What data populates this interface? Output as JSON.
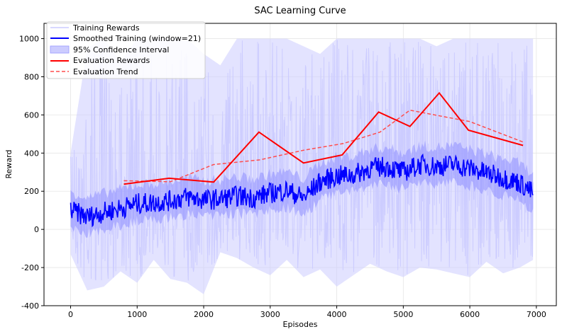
{
  "chart_data": {
    "type": "line",
    "title": "SAC Learning Curve",
    "xlabel": "Episodes",
    "ylabel": "Reward",
    "xlim": [
      -400,
      7300
    ],
    "ylim": [
      -400,
      1080
    ],
    "xticks": [
      0,
      1000,
      2000,
      3000,
      4000,
      5000,
      6000,
      7000
    ],
    "yticks": [
      -400,
      -200,
      0,
      200,
      400,
      600,
      800,
      1000
    ],
    "grid": true,
    "legend_position": "top-left",
    "colors": {
      "training_raw": "#ccccff",
      "ci_band": "#ccccff",
      "smoothed": "#0000ff",
      "mid_band": "#8080ff",
      "evaluation": "#ff0000",
      "trend": "#ff4d4d"
    },
    "series": [
      {
        "name": "Training Rewards",
        "style": "thin-line",
        "x": [
          0,
          250,
          500,
          750,
          1000,
          1250,
          1500,
          1750,
          2000,
          2250,
          2500,
          2750,
          3000,
          3250,
          3500,
          3750,
          4000,
          4250,
          4500,
          4750,
          5000,
          5250,
          5500,
          5750,
          6000,
          6250,
          6500,
          6750,
          6950
        ],
        "upper": [
          400,
          950,
          1000,
          880,
          1000,
          1000,
          1000,
          1000,
          920,
          860,
          1000,
          1000,
          1000,
          1000,
          960,
          920,
          1000,
          1000,
          1000,
          1000,
          1000,
          1000,
          960,
          1000,
          1000,
          1000,
          1000,
          1000,
          1000
        ],
        "lower": [
          -130,
          -320,
          -300,
          -220,
          -280,
          -160,
          -260,
          -280,
          -340,
          -120,
          -150,
          -200,
          -240,
          -160,
          -250,
          -210,
          -300,
          -240,
          -180,
          -220,
          -250,
          -200,
          -210,
          -230,
          -250,
          -170,
          -230,
          -200,
          -160
        ]
      },
      {
        "name": "Smoothed Training (window=21)",
        "style": "line",
        "x": [
          0,
          250,
          500,
          750,
          1000,
          1250,
          1500,
          1750,
          2000,
          2250,
          2500,
          2750,
          3000,
          3250,
          3500,
          3750,
          4000,
          4250,
          4500,
          4750,
          5000,
          5250,
          5500,
          5750,
          6000,
          6250,
          6500,
          6750,
          6950
        ],
        "values": [
          100,
          65,
          90,
          110,
          135,
          140,
          150,
          170,
          155,
          160,
          175,
          165,
          190,
          205,
          165,
          250,
          280,
          285,
          320,
          330,
          300,
          340,
          330,
          340,
          320,
          295,
          270,
          245,
          190
        ]
      },
      {
        "name": "95% Confidence Interval",
        "style": "band",
        "x": [
          0,
          250,
          500,
          750,
          1000,
          1250,
          1500,
          1750,
          2000,
          2250,
          2500,
          2750,
          3000,
          3250,
          3500,
          3750,
          4000,
          4250,
          4500,
          4750,
          5000,
          5250,
          5500,
          5750,
          6000,
          6250,
          6500,
          6750,
          6950
        ],
        "upper": [
          400,
          950,
          1000,
          880,
          1000,
          1000,
          1000,
          1000,
          920,
          860,
          1000,
          1000,
          1000,
          1000,
          960,
          920,
          1000,
          1000,
          1000,
          1000,
          1000,
          1000,
          960,
          1000,
          1000,
          1000,
          1000,
          1000,
          1000
        ],
        "lower": [
          -130,
          -320,
          -300,
          -220,
          -280,
          -160,
          -260,
          -280,
          -340,
          -120,
          -150,
          -200,
          -240,
          -160,
          -250,
          -210,
          -300,
          -240,
          -180,
          -220,
          -250,
          -200,
          -210,
          -230,
          -250,
          -170,
          -230,
          -200,
          -160
        ]
      },
      {
        "name": "Evaluation Rewards",
        "style": "line",
        "x": [
          800,
          1480,
          2150,
          2830,
          3500,
          4080,
          4630,
          5100,
          5540,
          5980,
          6800
        ],
        "values": [
          237,
          268,
          248,
          510,
          348,
          390,
          615,
          540,
          715,
          520,
          440
        ]
      },
      {
        "name": "Evaluation Trend",
        "style": "dashed",
        "x": [
          800,
          1500,
          2150,
          2850,
          3500,
          4100,
          4650,
          5100,
          5550,
          6000,
          6800
        ],
        "values": [
          255,
          250,
          340,
          365,
          415,
          450,
          510,
          625,
          595,
          565,
          458
        ]
      }
    ]
  }
}
